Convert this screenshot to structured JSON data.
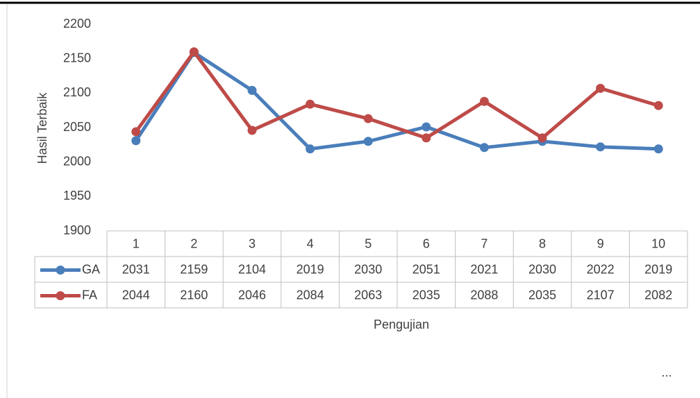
{
  "chart_data": {
    "type": "line",
    "y_label": "Hasil Terbaik",
    "x_label": "Pengujian",
    "annotation": "...",
    "categories": [
      "1",
      "2",
      "3",
      "4",
      "5",
      "6",
      "7",
      "8",
      "9",
      "10"
    ],
    "series": [
      {
        "name": "GA",
        "color": "#4a7ebb",
        "values": [
          2031,
          2159,
          2104,
          2019,
          2030,
          2051,
          2021,
          2030,
          2022,
          2019
        ]
      },
      {
        "name": "FA",
        "color": "#be4b48",
        "values": [
          2044,
          2160,
          2046,
          2084,
          2063,
          2035,
          2088,
          2035,
          2107,
          2082
        ]
      }
    ],
    "ylim": [
      1900,
      2200
    ],
    "yticks": [
      1900,
      1950,
      2000,
      2050,
      2100,
      2150,
      2200
    ],
    "grid": false,
    "data_table": true
  }
}
